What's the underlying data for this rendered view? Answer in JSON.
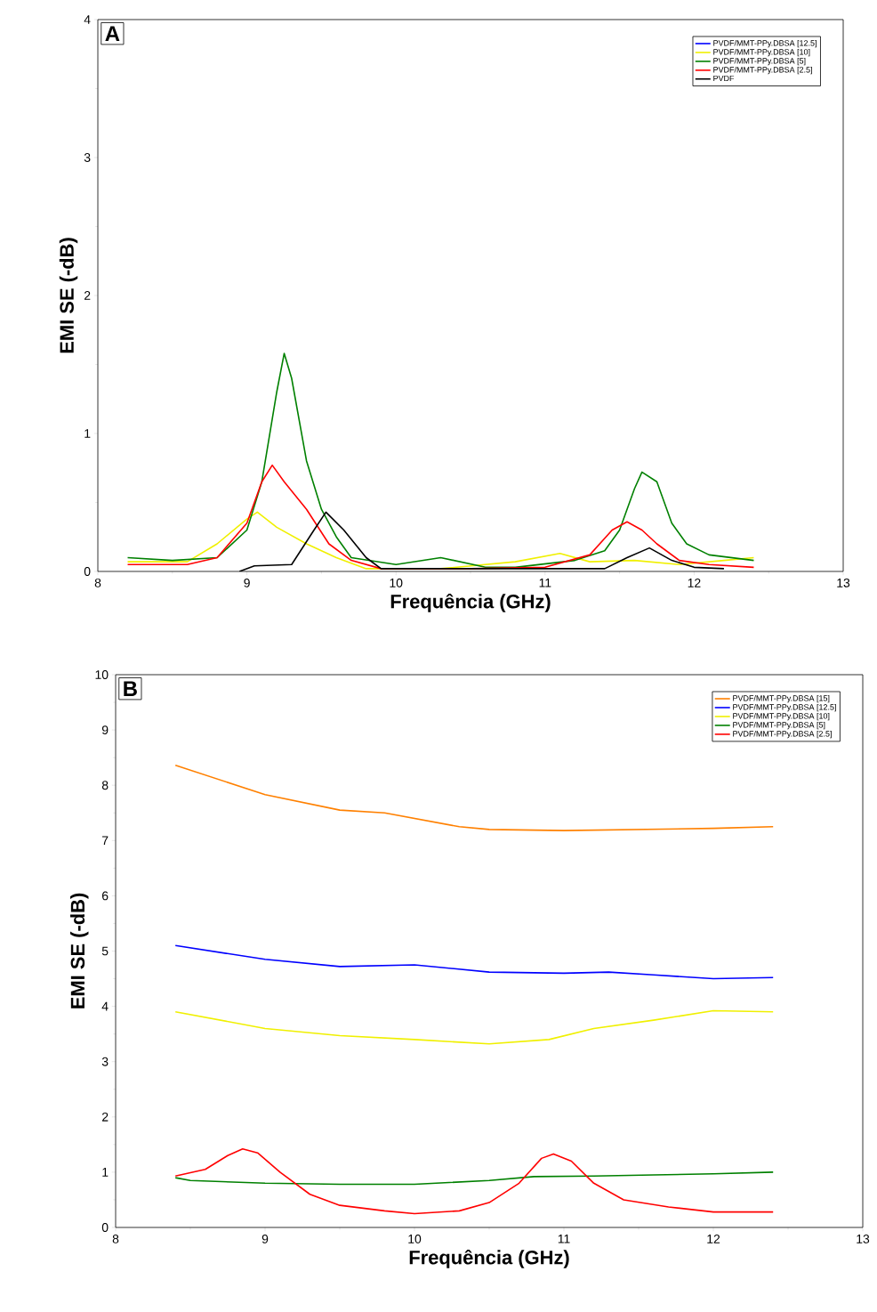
{
  "chart_data": [
    {
      "type": "line",
      "annotations": [
        "A"
      ],
      "xlabel": "Frequência (GHz)",
      "ylabel": "EMI SE (-dB)",
      "xlim": [
        8,
        13
      ],
      "ylim": [
        0,
        4
      ],
      "xticks": [
        8,
        9,
        10,
        11,
        12,
        13
      ],
      "yticks": [
        0,
        1,
        2,
        3,
        4
      ],
      "legend": "top right",
      "grid": false,
      "marker": "none",
      "line_style": "solid",
      "series": [
        {
          "name": "PVDF/MMT-PPy.DBSA [12.5]",
          "color": "#0000ff"
        },
        {
          "name": "PVDF/MMT-PPy.DBSA [10]",
          "color": "#f0f000",
          "x": [
            8.2,
            8.6,
            8.8,
            9.0,
            9.07,
            9.2,
            9.4,
            9.6,
            9.8,
            10.3,
            10.8,
            11.1,
            11.3,
            11.6,
            11.9,
            12.2,
            12.4
          ],
          "values": [
            0.07,
            0.07,
            0.2,
            0.38,
            0.43,
            0.32,
            0.2,
            0.1,
            0.02,
            0.02,
            0.07,
            0.13,
            0.07,
            0.08,
            0.05,
            0.08,
            0.1
          ]
        },
        {
          "name": "PVDF/MMT-PPy.DBSA [5]",
          "color": "#008000",
          "x": [
            8.2,
            8.5,
            8.8,
            9.0,
            9.1,
            9.2,
            9.25,
            9.3,
            9.4,
            9.5,
            9.6,
            9.7,
            10.0,
            10.3,
            10.6,
            10.8,
            11.2,
            11.4,
            11.5,
            11.6,
            11.65,
            11.75,
            11.85,
            11.95,
            12.1,
            12.4
          ],
          "values": [
            0.1,
            0.08,
            0.1,
            0.3,
            0.65,
            1.3,
            1.58,
            1.4,
            0.8,
            0.45,
            0.25,
            0.1,
            0.05,
            0.1,
            0.03,
            0.03,
            0.08,
            0.15,
            0.3,
            0.6,
            0.72,
            0.65,
            0.35,
            0.2,
            0.12,
            0.08
          ]
        },
        {
          "name": "PVDF/MMT-PPy.DBSA [2.5]",
          "color": "#ff0000",
          "x": [
            8.2,
            8.6,
            8.8,
            9.0,
            9.1,
            9.17,
            9.25,
            9.4,
            9.55,
            9.7,
            9.9,
            10.5,
            11.0,
            11.3,
            11.45,
            11.55,
            11.65,
            11.75,
            11.9,
            12.1,
            12.4
          ],
          "values": [
            0.05,
            0.05,
            0.1,
            0.35,
            0.65,
            0.77,
            0.65,
            0.45,
            0.2,
            0.08,
            0.02,
            0.02,
            0.03,
            0.12,
            0.3,
            0.36,
            0.3,
            0.2,
            0.08,
            0.05,
            0.03
          ]
        },
        {
          "name": "PVDF",
          "color": "#000000",
          "x": [
            8.95,
            9.05,
            9.3,
            9.45,
            9.53,
            9.65,
            9.8,
            9.9,
            11.4,
            11.55,
            11.7,
            11.85,
            12.0,
            12.2
          ],
          "values": [
            0,
            0.04,
            0.05,
            0.3,
            0.43,
            0.3,
            0.1,
            0.02,
            0.02,
            0.1,
            0.17,
            0.08,
            0.03,
            0.02
          ]
        }
      ]
    },
    {
      "type": "line",
      "annotations": [
        "B"
      ],
      "xlabel": "Frequência (GHz)",
      "ylabel": "EMI SE (-dB)",
      "xlim": [
        8,
        13
      ],
      "ylim": [
        0,
        10
      ],
      "xticks": [
        8,
        9,
        10,
        11,
        12,
        13
      ],
      "yticks": [
        0,
        1,
        2,
        3,
        4,
        5,
        6,
        7,
        8,
        9,
        10
      ],
      "legend": "top right",
      "grid": false,
      "marker": "none",
      "line_style": "solid",
      "series": [
        {
          "name": "PVDF/MMT-PPy.DBSA [15]",
          "color": "#ff8000",
          "x": [
            8.4,
            9.0,
            9.5,
            9.8,
            10.0,
            10.3,
            10.5,
            11.0,
            11.5,
            12.0,
            12.4
          ],
          "values": [
            8.36,
            7.83,
            7.55,
            7.5,
            7.4,
            7.25,
            7.2,
            7.18,
            7.2,
            7.22,
            7.25
          ]
        },
        {
          "name": "PVDF/MMT-PPy.DBSA [12.5]",
          "color": "#0000ff",
          "x": [
            8.4,
            9.0,
            9.5,
            10.0,
            10.5,
            11.0,
            11.3,
            11.6,
            12.0,
            12.4
          ],
          "values": [
            5.1,
            4.85,
            4.72,
            4.75,
            4.62,
            4.6,
            4.62,
            4.57,
            4.5,
            4.52
          ]
        },
        {
          "name": "PVDF/MMT-PPy.DBSA [10]",
          "color": "#f0f000",
          "x": [
            8.4,
            9.0,
            9.5,
            10.0,
            10.5,
            10.8,
            10.9,
            11.2,
            11.6,
            12.0,
            12.4
          ],
          "values": [
            3.9,
            3.6,
            3.47,
            3.4,
            3.32,
            3.38,
            3.4,
            3.6,
            3.75,
            3.92,
            3.9
          ]
        },
        {
          "name": "PVDF/MMT-PPy.DBSA [5]",
          "color": "#008000",
          "x": [
            8.4,
            8.5,
            9.0,
            9.5,
            10.0,
            10.5,
            10.8,
            11.2,
            11.6,
            12.0,
            12.4
          ],
          "values": [
            0.9,
            0.85,
            0.8,
            0.78,
            0.78,
            0.85,
            0.92,
            0.93,
            0.95,
            0.97,
            1.0
          ]
        },
        {
          "name": "PVDF/MMT-PPy.DBSA [2.5]",
          "color": "#ff0000",
          "x": [
            8.4,
            8.6,
            8.75,
            8.85,
            8.95,
            9.1,
            9.3,
            9.5,
            9.8,
            10.0,
            10.3,
            10.5,
            10.7,
            10.85,
            10.93,
            11.05,
            11.2,
            11.4,
            11.7,
            12.0,
            12.4
          ],
          "values": [
            0.93,
            1.05,
            1.3,
            1.42,
            1.35,
            1.0,
            0.6,
            0.4,
            0.3,
            0.25,
            0.3,
            0.45,
            0.8,
            1.25,
            1.33,
            1.2,
            0.8,
            0.5,
            0.37,
            0.28,
            0.28
          ]
        }
      ]
    }
  ]
}
